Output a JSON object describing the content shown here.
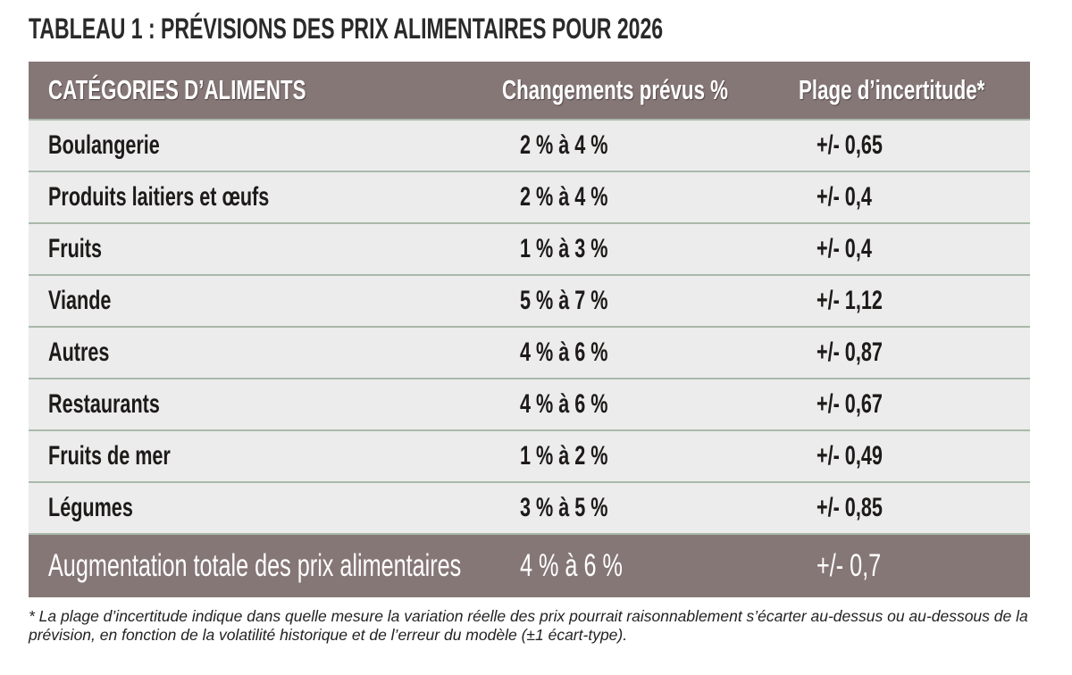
{
  "title": "TABLEAU 1 : PRÉVISIONS DES PRIX ALIMENTAIRES POUR 2026",
  "colors": {
    "header_bg": "#867777",
    "row_bg": "#ececec",
    "separator": "#a9b9aa"
  },
  "table": {
    "headers": [
      "CATÉGORIES D’ALIMENTS",
      "Changements prévus %",
      "Plage d’incertitude*"
    ],
    "rows": [
      [
        "Boulangerie",
        "2 % à 4 %",
        "+/- 0,65"
      ],
      [
        "Produits laitiers et œufs",
        "2 % à 4 %",
        "+/- 0,4"
      ],
      [
        "Fruits",
        "1 % à 3 %",
        "+/- 0,4"
      ],
      [
        "Viande",
        "5 % à 7 %",
        "+/- 1,12"
      ],
      [
        "Autres",
        "4 % à 6 %",
        "+/- 0,87"
      ],
      [
        "Restaurants",
        "4 % à 6 %",
        "+/- 0,67"
      ],
      [
        "Fruits de mer",
        "1 % à 2 %",
        "+/- 0,49"
      ],
      [
        "Légumes",
        "3 % à 5 %",
        "+/- 0,85"
      ]
    ],
    "total": [
      "Augmentation totale des prix alimentaires",
      "4 % à 6 %",
      "+/- 0,7"
    ]
  },
  "footnote": "* La plage d’incertitude indique dans quelle mesure la variation réelle des prix pourrait raisonnablement s’écarter au-dessus ou au-dessous de la prévision, en fonction de la volatilité historique et de l’erreur du modèle (±1 écart-type)."
}
